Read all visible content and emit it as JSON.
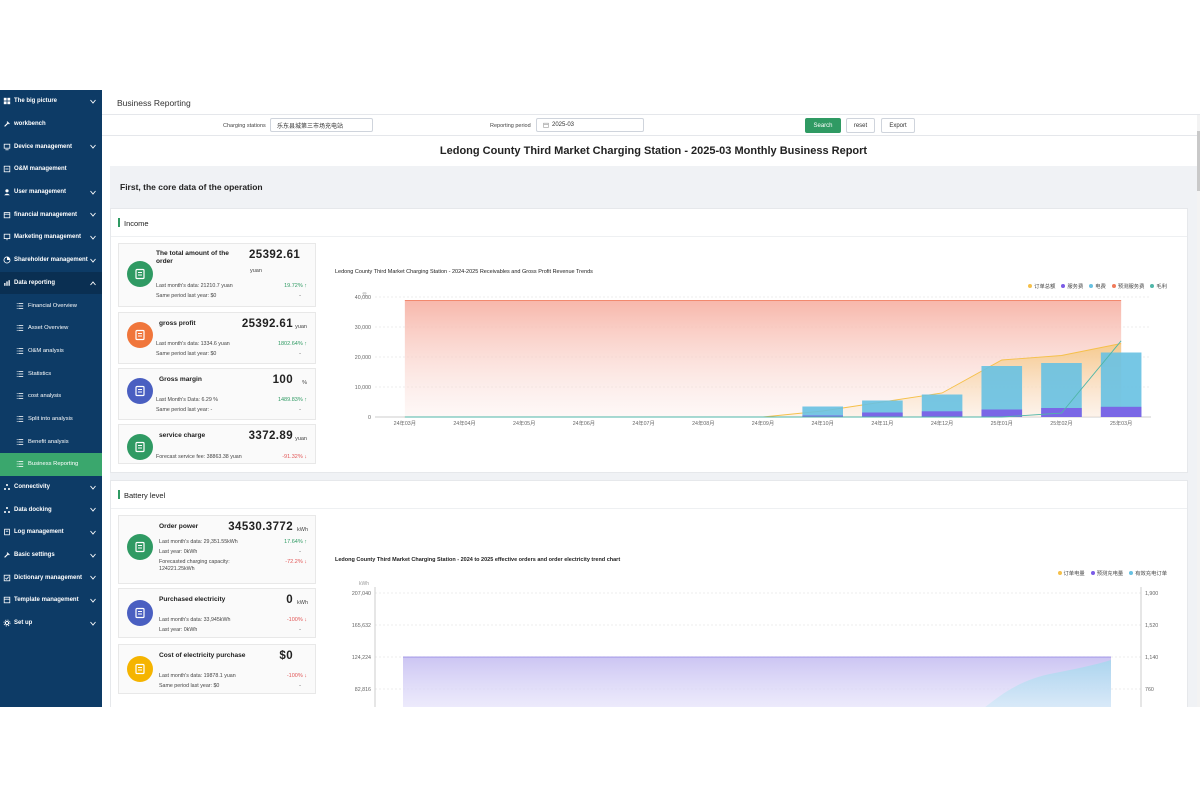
{
  "sidebar": {
    "items": [
      {
        "label": "The big picture",
        "icon": "grid-icon",
        "chev": "down"
      },
      {
        "label": "workbench",
        "icon": "tools-icon",
        "chev": ""
      },
      {
        "label": "Device management",
        "icon": "device-icon",
        "chev": "down"
      },
      {
        "label": "O&M management",
        "icon": "wrench-icon",
        "chev": ""
      },
      {
        "label": "User management",
        "icon": "user-icon",
        "chev": "down"
      },
      {
        "label": "financial management",
        "icon": "finance-icon",
        "chev": "down"
      },
      {
        "label": "Marketing management",
        "icon": "marketing-icon",
        "chev": "down"
      },
      {
        "label": "Shareholder management",
        "icon": "pie-icon",
        "chev": "down"
      },
      {
        "label": "Data reporting",
        "icon": "bar-chart-icon",
        "chev": "up"
      }
    ],
    "subitems": [
      {
        "label": "Financial Overview"
      },
      {
        "label": "Asset Overview"
      },
      {
        "label": "O&M analysis"
      },
      {
        "label": "Statistics"
      },
      {
        "label": "cost analysis"
      },
      {
        "label": "Split into analysis"
      },
      {
        "label": "Benefit analysis"
      },
      {
        "label": "Business Reporting"
      }
    ],
    "items_after": [
      {
        "label": "Connectivity",
        "icon": "network-icon",
        "chev": "down"
      },
      {
        "label": "Data docking",
        "icon": "docking-icon",
        "chev": "down"
      },
      {
        "label": "Log management",
        "icon": "log-icon",
        "chev": "down"
      },
      {
        "label": "Basic settings",
        "icon": "settings-icon",
        "chev": "down"
      },
      {
        "label": "Dictionary management",
        "icon": "dictionary-icon",
        "chev": "down"
      },
      {
        "label": "Template management",
        "icon": "template-icon",
        "chev": "down"
      },
      {
        "label": "Set up",
        "icon": "gear-icon",
        "chev": "down"
      }
    ]
  },
  "header": {
    "title": "Business Reporting"
  },
  "filter": {
    "station_label": "Charging stations",
    "station_value": "乐东县城第三市场充电站",
    "period_label": "Reporting period",
    "period_value": "2025-03",
    "search": "Search",
    "reset": "reset",
    "export": "Export"
  },
  "report": {
    "title": "Ledong County Third Market Charging Station - 2025-03 Monthly Business Report",
    "section": "First, the core data of the operation"
  },
  "income": {
    "label": "Income",
    "cards": [
      {
        "title": "The total amount of the order",
        "value": "25392.61",
        "unit": "yuan",
        "line1": "Last month's data: 21210.7 yuan",
        "line2": "Same period last year: $0",
        "pct": "19.72%",
        "dir": "up",
        "dash": "-",
        "color": "#2f9a63"
      },
      {
        "title": "gross profit",
        "value": "25392.61",
        "unit": "yuan",
        "line1": "Last month's data: 1334.6 yuan",
        "line2": "Same period last year: $0",
        "pct": "1802.64%",
        "dir": "up",
        "dash": "-",
        "color": "#f0763b"
      },
      {
        "title": "Gross margin",
        "value": "100",
        "unit": "%",
        "line1": "Last Month's Data: 6.29 %",
        "line2": "Same period last year: -",
        "pct": "1489.83%",
        "dir": "up",
        "dash": "-",
        "color": "#4a5fc1"
      },
      {
        "title": "service charge",
        "value": "3372.89",
        "unit": "yuan",
        "line1": "Forecast service fee: 38863.38 yuan",
        "line2": "",
        "pct": "-91.32%",
        "dir": "down",
        "dash": "",
        "color": "#2f9a63"
      }
    ]
  },
  "battery": {
    "label": "Battery level",
    "cards": [
      {
        "title": "Order power",
        "value": "34530.3772",
        "unit": "kWh",
        "line1": "Last month's data: 29,351.55kWh",
        "line2": "Last year: 0kWh",
        "line3": "Forecasted charging capacity:",
        "line4": "124221.25kWh",
        "pct": "17.64%",
        "dir": "up",
        "dash": "-",
        "pct2": "-72.2%",
        "color": "#2f9a63"
      },
      {
        "title": "Purchased electricity",
        "value": "0",
        "unit": "kWh",
        "line1": "Last month's data: 33,945kWh",
        "line2": "Last year: 0kWh",
        "pct": "-100%",
        "dir": "down",
        "dash": "-",
        "color": "#4a5fc1"
      },
      {
        "title": "Cost of electricity purchase",
        "value": "$0",
        "unit": "",
        "line1": "Last month's data: 19878.1 yuan",
        "line2": "Same period last year: $0",
        "pct": "-100%",
        "dir": "down",
        "dash": "-",
        "color": "#f5b400"
      }
    ]
  },
  "chart_data": [
    {
      "type": "bar",
      "title": "Ledong County Third Market Charging Station - 2024-2025 Receivables and Gross Profit Revenue Trends",
      "ylabel": "元",
      "ylim": [
        0,
        40000
      ],
      "yticks": [
        "0",
        "10,000",
        "20,000",
        "30,000",
        "40,000"
      ],
      "categories": [
        "24年03月",
        "24年04月",
        "24年05月",
        "24年06月",
        "24年07月",
        "24年08月",
        "24年09月",
        "24年10月",
        "24年11月",
        "24年12月",
        "25年01月",
        "25年02月",
        "25年03月"
      ],
      "legend": [
        "订单总额",
        "服务费",
        "电费",
        "预测服务费",
        "毛利"
      ],
      "series": [
        {
          "name": "订单总额",
          "color": "#f5c04a",
          "values": [
            0,
            0,
            0,
            0,
            0,
            0,
            0,
            2000,
            5000,
            8000,
            19000,
            20500,
            24500
          ]
        },
        {
          "name": "服务费",
          "color": "#7b5ce6",
          "values": [
            0,
            0,
            0,
            0,
            0,
            0,
            0,
            500,
            1500,
            1900,
            2500,
            3000,
            3400
          ]
        },
        {
          "name": "电费",
          "color": "#67c1e2",
          "values": [
            0,
            0,
            0,
            0,
            0,
            0,
            0,
            3500,
            5500,
            7500,
            17000,
            18000,
            21500
          ]
        },
        {
          "name": "预测服务费",
          "color": "#f07a5a",
          "values": [
            38863,
            38863,
            38863,
            38863,
            38863,
            38863,
            38863,
            38863,
            38863,
            38863,
            38863,
            38863,
            38863
          ]
        },
        {
          "name": "毛利",
          "color": "#4fb6a8",
          "values": [
            0,
            0,
            0,
            0,
            0,
            0,
            0,
            0,
            0,
            0,
            0,
            1300,
            25392
          ]
        }
      ]
    },
    {
      "type": "area",
      "title": "Ledong County Third Market Charging Station - 2024 to 2025 effective orders and order electricity trend chart",
      "ylabel": "kWh",
      "yticks_left": [
        "207,040",
        "165,632",
        "124,224",
        "82,816"
      ],
      "yticks_right": [
        "1,900",
        "1,520",
        "1,140",
        "760"
      ],
      "legend": [
        "订单电量",
        "预测充电量",
        "有效充电订单"
      ],
      "legend_colors": [
        "#f5c04a",
        "#7b5ce6",
        "#67c1e2"
      ]
    }
  ]
}
